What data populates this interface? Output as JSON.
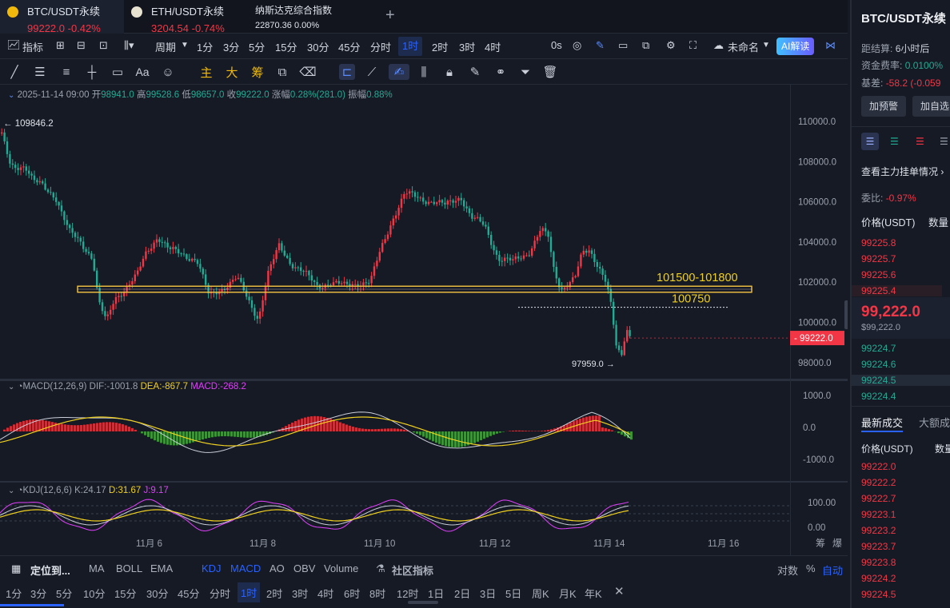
{
  "tabs": [
    {
      "name": "BTC/USDT永续",
      "price": "99222.0",
      "change": "-0.42%"
    },
    {
      "name": "ETH/USDT永续",
      "price": "3204.54",
      "change": "-0.74%"
    },
    {
      "name": "纳斯达克综合指数",
      "price": "22870.36",
      "change": "0.00%"
    }
  ],
  "toolbar": {
    "indicator": "指标",
    "period": "周期",
    "intervals": [
      "1分",
      "3分",
      "5分",
      "15分",
      "30分",
      "45分",
      "分时",
      "1时",
      "2时",
      "3时",
      "4时"
    ],
    "active": "1时",
    "zero_s": "0s",
    "unnamed": "未命名",
    "ai": "AI解读"
  },
  "drawbar": {
    "text": "Aa",
    "zhu": "主",
    "da": "大",
    "chou": "筹"
  },
  "info": {
    "date": "2025-11-14 09:00",
    "open_l": "开",
    "open": "98941.0",
    "high_l": "高",
    "high": "99528.6",
    "low_l": "低",
    "low": "98657.0",
    "close_l": "收",
    "close": "99222.0",
    "chg_l": "涨幅",
    "chg": "0.28%(281.0)",
    "amp_l": "振幅",
    "amp": "0.88%"
  },
  "annotations": {
    "zone": "101500-101800",
    "level": "100750",
    "hi_label": "← 109846.2",
    "lo_label": "97959.0 →",
    "price_tag": "99222.0"
  },
  "macd": {
    "title": "MACD(12,26,9)",
    "dif": "DIF:-1001.8",
    "dea": "DEA:-867.7",
    "macd": "MACD:-268.2",
    "axis": [
      "1000.0",
      "0.0",
      "-1000.0"
    ]
  },
  "kdj": {
    "title": "KDJ(12,6,6)",
    "k": "K:24.17",
    "d": "D:31.67",
    "j": "J:9.17",
    "axis": [
      "100.00",
      "0.00"
    ]
  },
  "price_axis": [
    "110000.0",
    "108000.0",
    "106000.0",
    "104000.0",
    "102000.0",
    "100000.0",
    "98000.0"
  ],
  "date_axis": [
    "11月 6",
    "11月 8",
    "11月 10",
    "11月 12",
    "11月 14",
    "11月 16"
  ],
  "date_axis_right": [
    "筹",
    "爆"
  ],
  "bottom1": {
    "locate": "定位到...",
    "items": [
      "MA",
      "BOLL",
      "EMA",
      "KDJ",
      "MACD",
      "AO",
      "OBV",
      "Volume"
    ],
    "community": "社区指标",
    "log": "对数",
    "pct": "%",
    "auto": "自动"
  },
  "bottom2": [
    "1分",
    "3分",
    "5分",
    "10分",
    "15分",
    "30分",
    "45分",
    "分时",
    "1时",
    "2时",
    "3时",
    "4时",
    "6时",
    "8时",
    "12时",
    "1日",
    "2日",
    "3日",
    "5日",
    "周K",
    "月K",
    "年K"
  ],
  "side": {
    "title": "BTC/USDT永续",
    "settle_l": "距结算:",
    "settle": "6小时后",
    "funding_l": "资金费率:",
    "funding": "0.0100%",
    "basis_l": "基差:",
    "basis": "-58.2 (-0.059",
    "btn_alert": "加预警",
    "btn_fav": "加自选",
    "view_main": "查看主力挂单情况",
    "ratio_l": "委比:",
    "ratio": "-0.97%",
    "col_price": "价格(USDT)",
    "col_qty": "数量",
    "asks": [
      "99225.8",
      "99225.7",
      "99225.6",
      "99225.4"
    ],
    "last": "99,222.0",
    "last_usd": "$99,222.0",
    "bids": [
      "99224.7",
      "99224.6",
      "99224.5",
      "99224.4"
    ],
    "trades_tab": "最新成交",
    "big_tab": "大额成",
    "trades": [
      "99222.0",
      "99222.2",
      "99222.7",
      "99223.1",
      "99223.2",
      "99223.7",
      "99223.8",
      "99224.2",
      "99224.5"
    ]
  },
  "colors": {
    "up": "#f23645",
    "down": "#22ab94",
    "accent": "#2962ff",
    "zone": "#f0d020"
  }
}
